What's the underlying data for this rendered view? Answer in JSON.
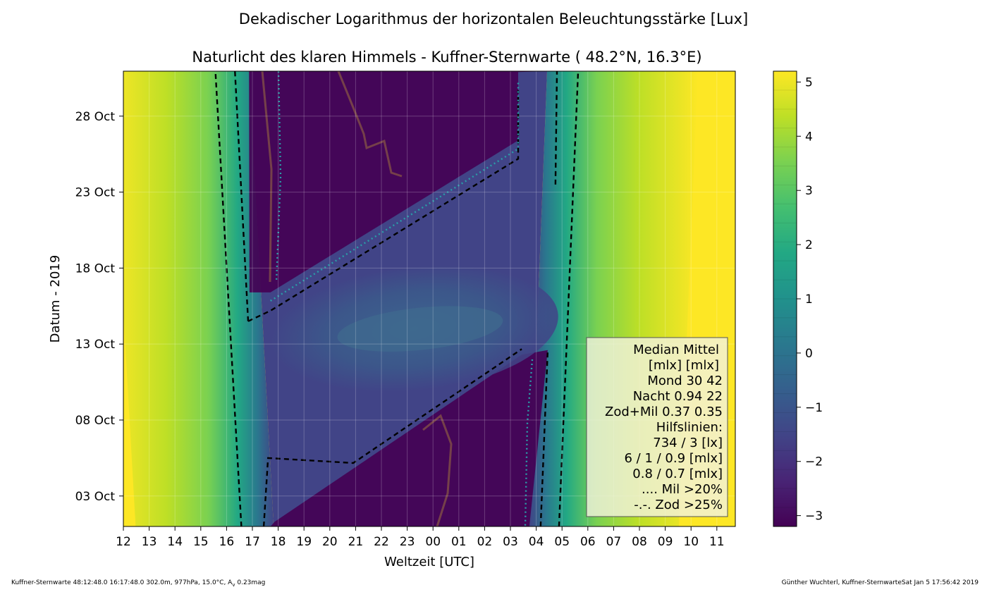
{
  "chart_data": {
    "type": "heatmap",
    "title": "Dekadischer Logarithmus der horizontalen Beleuchtungsstärke [Lux]",
    "subtitle": "Naturlicht des klaren Himmels - Kuffner-Sternwarte ( 48.2°N, 16.3°E)",
    "xlabel": "Weltzeit [UTC]",
    "ylabel": "Datum - 2019",
    "x_ticks": [
      "12",
      "13",
      "14",
      "15",
      "16",
      "17",
      "18",
      "19",
      "20",
      "21",
      "22",
      "23",
      "00",
      "01",
      "02",
      "03",
      "04",
      "05",
      "06",
      "07",
      "08",
      "09",
      "10",
      "11"
    ],
    "y_ticks": [
      "03 Oct",
      "08 Oct",
      "13 Oct",
      "18 Oct",
      "23 Oct",
      "28 Oct"
    ],
    "colorbar": {
      "colormap": "viridis",
      "range": [
        -3.2,
        5.2
      ],
      "tick_labels": [
        "5",
        "4",
        "3",
        "2",
        "1",
        "0",
        "−1",
        "−2",
        "−3"
      ]
    },
    "grid": true,
    "legend_position": "lower-right",
    "legend": {
      "lines": [
        "Median Mittel",
        "[mlx]  [mlx]",
        "Mond   30  42",
        "Nacht 0.94  22",
        "Zod+Mil 0.37  0.35",
        "Hilfslinien:",
        "734 / 3  [lx]",
        "6 /  1 / 0.9 [mlx]",
        "0.8 / 0.7 [mlx]",
        ".... Mil >20%",
        "-.-. Zod >25%"
      ]
    },
    "twilight_contours": {
      "evening_outer_UTC": {
        "oct1": 16.55,
        "oct30": 15.6
      },
      "evening_inner_UTC": {
        "oct1": 17.2,
        "oct30": 16.3
      },
      "morning_inner_UTC": {
        "oct1": 4.35,
        "oct30": 5.0
      },
      "morning_outer_UTC": {
        "oct1": 4.9,
        "oct30": 5.6
      }
    },
    "moonlit_band": {
      "start_date": "Oct 4",
      "end_date": "Oct 23",
      "color_level": -0.3
    },
    "moonless_level": -3.1,
    "day_level": 5.0,
    "colors": {
      "viridis": [
        "#440154",
        "#482475",
        "#414487",
        "#355f8d",
        "#2a788e",
        "#21918c",
        "#22a884",
        "#44bf70",
        "#7ad151",
        "#bddf26",
        "#fde725"
      ],
      "contour_dash": "#000000",
      "moon_contour": "#8a5a44",
      "milkyway_dots": "#2a9da8"
    }
  },
  "footer": {
    "left": "Kuffner-Sternwarte 48:12:48.0 16:17:48.0 302.0m,  977hPa, 15.0°C, A",
    "left_sub": "v",
    "left_end": " 0.23mag",
    "right": "Günther Wuchterl, Kuffner-SternwarteSat Jan  5 17:56:42 2019"
  }
}
